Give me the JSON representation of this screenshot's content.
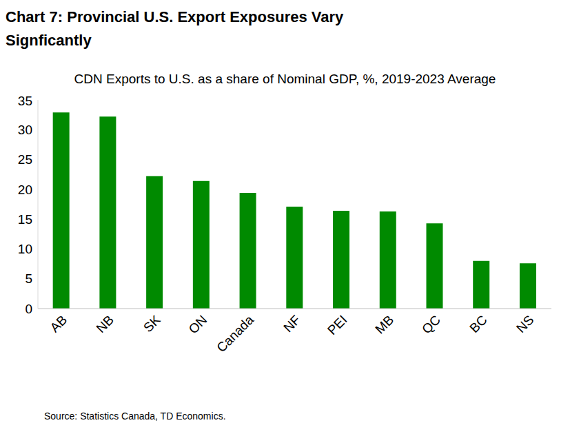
{
  "chart_data": {
    "type": "bar",
    "title": "Chart 7: Provincial U.S. Export Exposures Vary Signficantly",
    "subtitle": "CDN Exports to U.S. as a share of Nominal GDP, %, 2019-2023 Average",
    "source": "Source: Statistics Canada, TD Economics.",
    "categories": [
      "AB",
      "NB",
      "SK",
      "ON",
      "Canada",
      "NF",
      "PEI",
      "MB",
      "QC",
      "BC",
      "NS"
    ],
    "values": [
      32.9,
      32.2,
      22.2,
      21.4,
      19.4,
      17.1,
      16.4,
      16.3,
      14.3,
      8.0,
      7.6
    ],
    "color": "#008a00",
    "ylim": [
      0,
      35
    ],
    "yticks": [
      0,
      5,
      10,
      15,
      20,
      25,
      30,
      35
    ],
    "grid": false
  }
}
